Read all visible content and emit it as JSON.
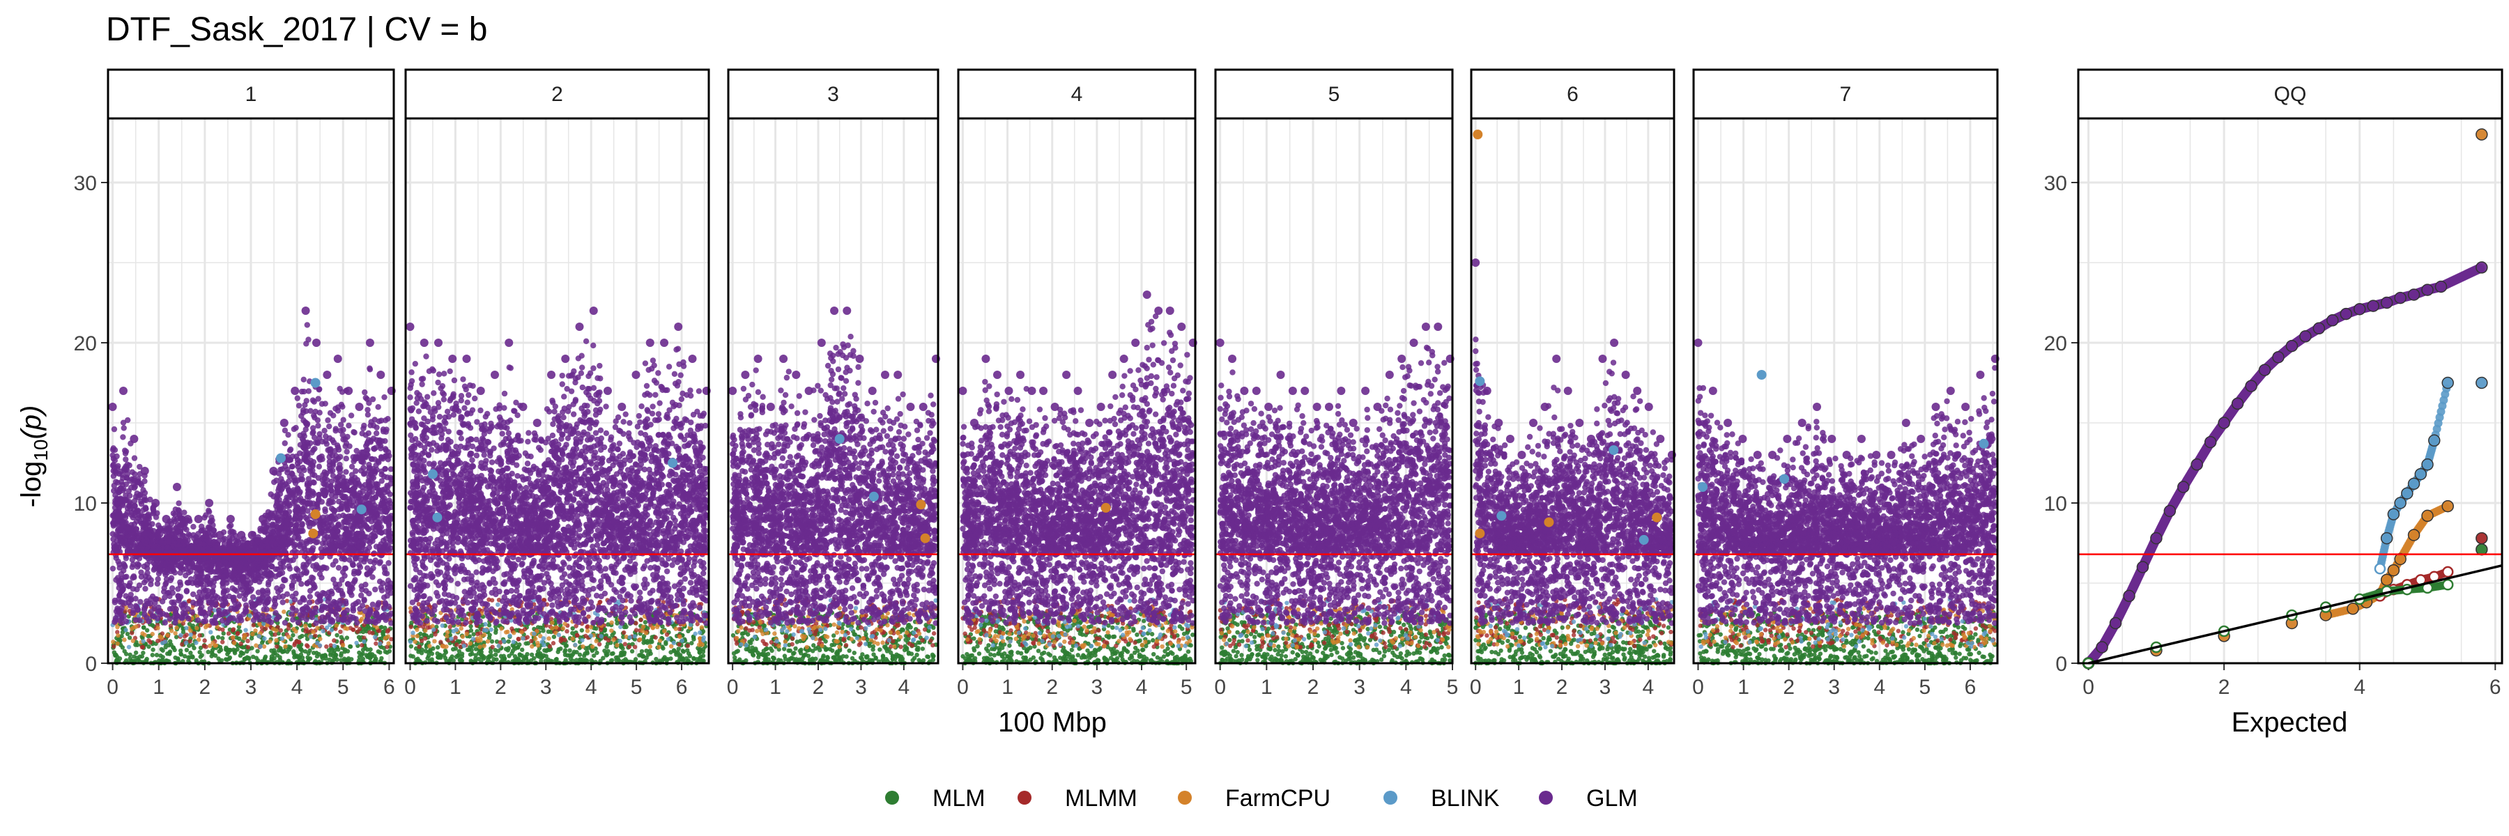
{
  "title": "DTF_Sask_2017 | CV = b",
  "ylabel_main": "-log",
  "ylabel_sub": "10",
  "ylabel_arg": "(p)",
  "xlabel_manhattan": "100 Mbp",
  "xlabel_qq": "Expected",
  "threshold": 6.8,
  "colors": {
    "MLM": "#2e7d32",
    "MLMM": "#a52a2a",
    "FarmCPU": "#d4822a",
    "BLINK": "#5b9ac8",
    "GLM": "#6a2a8e",
    "threshold_line": "#ff0000",
    "grid": "#e6e6e6"
  },
  "legend": [
    "MLM",
    "MLMM",
    "FarmCPU",
    "BLINK",
    "GLM"
  ],
  "chart_data": {
    "type": "scatter",
    "subtype": "manhattan + qq",
    "ylim": [
      0,
      34
    ],
    "yticks": [
      0,
      10,
      20,
      30
    ],
    "panels": [
      {
        "label": "1",
        "xlim": [
          -0.1,
          6.1
        ],
        "xticks": [
          0,
          1,
          2,
          3,
          4,
          5,
          6
        ],
        "glm_peak": [
          16,
          17,
          14,
          12,
          10,
          9,
          11,
          9,
          9,
          10,
          8,
          9,
          8,
          8,
          9,
          12,
          15,
          17,
          22,
          20,
          18,
          19,
          17,
          16,
          20,
          18,
          17
        ],
        "highlights": [
          {
            "series": "BLINK",
            "x": 3.65,
            "y": 12.8
          },
          {
            "series": "BLINK",
            "x": 4.4,
            "y": 17.5
          },
          {
            "series": "FarmCPU",
            "x": 4.4,
            "y": 9.3
          },
          {
            "series": "FarmCPU",
            "x": 4.35,
            "y": 8.1
          },
          {
            "series": "BLINK",
            "x": 5.4,
            "y": 9.6
          }
        ]
      },
      {
        "label": "2",
        "xlim": [
          -0.1,
          6.6
        ],
        "xticks": [
          0,
          1,
          2,
          3,
          4,
          5,
          6
        ],
        "glm_peak": [
          21,
          20,
          20,
          19,
          19,
          17,
          18,
          20,
          16,
          15,
          18,
          19,
          21,
          22,
          17,
          16,
          18,
          20,
          20,
          21,
          19,
          17
        ],
        "highlights": [
          {
            "series": "BLINK",
            "x": 0.5,
            "y": 11.8
          },
          {
            "series": "BLINK",
            "x": 0.6,
            "y": 9.1
          },
          {
            "series": "BLINK",
            "x": 5.8,
            "y": 12.5
          }
        ]
      },
      {
        "label": "3",
        "xlim": [
          -0.1,
          4.8
        ],
        "xticks": [
          0,
          1,
          2,
          3,
          4
        ],
        "glm_peak": [
          17,
          18,
          19,
          16,
          19,
          18,
          17,
          20,
          22,
          22,
          19,
          17,
          18,
          18,
          16,
          16,
          19
        ],
        "highlights": [
          {
            "series": "BLINK",
            "x": 2.5,
            "y": 14.0
          },
          {
            "series": "BLINK",
            "x": 3.3,
            "y": 10.4
          },
          {
            "series": "FarmCPU",
            "x": 4.4,
            "y": 9.9
          },
          {
            "series": "FarmCPU",
            "x": 4.5,
            "y": 7.8
          }
        ]
      },
      {
        "label": "4",
        "xlim": [
          -0.1,
          5.2
        ],
        "xticks": [
          0,
          1,
          2,
          3,
          4,
          5
        ],
        "glm_peak": [
          17,
          15,
          19,
          18,
          17,
          18,
          17,
          17,
          16,
          18,
          17,
          15,
          16,
          18,
          19,
          20,
          23,
          22,
          22,
          21,
          20
        ],
        "highlights": [
          {
            "series": "FarmCPU",
            "x": 3.2,
            "y": 9.7
          }
        ]
      },
      {
        "label": "5",
        "xlim": [
          -0.1,
          5.0
        ],
        "xticks": [
          0,
          1,
          2,
          3,
          4,
          5
        ],
        "glm_peak": [
          20,
          19,
          17,
          17,
          16,
          18,
          17,
          17,
          16,
          16,
          17,
          15,
          17,
          16,
          18,
          19,
          20,
          21,
          21,
          19
        ],
        "highlights": []
      },
      {
        "label": "6",
        "xlim": [
          -0.1,
          4.6
        ],
        "xticks": [
          0,
          1,
          2,
          3,
          4
        ],
        "glm_peak": [
          25,
          17,
          15,
          14,
          13,
          15,
          16,
          19,
          17,
          15,
          14,
          19,
          20,
          18,
          17,
          16,
          14,
          13
        ],
        "highlights": [
          {
            "series": "FarmCPU",
            "x": 0.05,
            "y": 33.0
          },
          {
            "series": "BLINK",
            "x": 0.1,
            "y": 17.6
          },
          {
            "series": "FarmCPU",
            "x": 0.1,
            "y": 8.1
          },
          {
            "series": "BLINK",
            "x": 0.6,
            "y": 9.2
          },
          {
            "series": "FarmCPU",
            "x": 1.7,
            "y": 8.8
          },
          {
            "series": "BLINK",
            "x": 3.2,
            "y": 13.3
          },
          {
            "series": "FarmCPU",
            "x": 4.2,
            "y": 9.1
          },
          {
            "series": "BLINK",
            "x": 3.9,
            "y": 7.7
          }
        ]
      },
      {
        "label": "7",
        "xlim": [
          -0.1,
          6.6
        ],
        "xticks": [
          0,
          1,
          2,
          3,
          4,
          5,
          6
        ],
        "glm_peak": [
          20,
          17,
          15,
          14,
          13,
          13,
          14,
          15,
          16,
          14,
          13,
          14,
          13,
          13,
          15,
          14,
          16,
          17,
          16,
          18,
          19
        ],
        "highlights": [
          {
            "series": "BLINK",
            "x": 0.1,
            "y": 11.0
          },
          {
            "series": "BLINK",
            "x": 1.4,
            "y": 18.0
          },
          {
            "series": "BLINK",
            "x": 1.9,
            "y": 11.5
          },
          {
            "series": "BLINK",
            "x": 6.3,
            "y": 13.7
          }
        ]
      }
    ],
    "qq": {
      "label": "QQ",
      "xlim": [
        -0.15,
        6.1
      ],
      "xticks": [
        0,
        2,
        4,
        6
      ],
      "expected_line": {
        "x": [
          0,
          6.1
        ],
        "y": [
          0,
          6.1
        ]
      },
      "series": [
        {
          "name": "GLM",
          "x": [
            0,
            0.2,
            0.4,
            0.6,
            0.8,
            1.0,
            1.2,
            1.4,
            1.6,
            1.8,
            2.0,
            2.2,
            2.4,
            2.6,
            2.8,
            3.0,
            3.2,
            3.4,
            3.6,
            3.8,
            4.0,
            4.2,
            4.4,
            4.6,
            4.8,
            5.0,
            5.2,
            5.8
          ],
          "y": [
            0,
            1.0,
            2.5,
            4.2,
            6.0,
            7.8,
            9.5,
            11.0,
            12.4,
            13.8,
            15.0,
            16.2,
            17.3,
            18.3,
            19.1,
            19.8,
            20.4,
            20.9,
            21.4,
            21.8,
            22.1,
            22.3,
            22.5,
            22.8,
            23.0,
            23.3,
            23.5,
            24.7
          ]
        },
        {
          "name": "FarmCPU",
          "x": [
            0,
            1,
            2,
            3,
            3.5,
            3.9,
            4.1,
            4.3,
            4.4,
            4.5,
            4.6,
            4.8,
            5.0,
            5.3,
            5.8
          ],
          "y": [
            0,
            0.8,
            1.7,
            2.5,
            3.0,
            3.4,
            3.8,
            4.3,
            5.2,
            5.8,
            6.5,
            8.0,
            9.2,
            9.8,
            33.0
          ]
        },
        {
          "name": "BLINK",
          "x": [
            4.3,
            4.4,
            4.5,
            4.6,
            4.7,
            4.8,
            4.9,
            5.0,
            5.1,
            5.3,
            5.8
          ],
          "y": [
            5.9,
            7.8,
            9.3,
            10.0,
            10.6,
            11.2,
            11.8,
            12.4,
            13.9,
            17.5,
            17.5
          ]
        },
        {
          "name": "MLMM",
          "x": [
            4.3,
            4.5,
            4.7,
            4.9,
            5.1,
            5.3,
            5.8
          ],
          "y": [
            4.2,
            4.6,
            4.9,
            5.2,
            5.4,
            5.7,
            7.8
          ]
        },
        {
          "name": "MLM",
          "x": [
            0,
            1,
            2,
            3,
            3.5,
            4.0,
            4.4,
            4.7,
            5.0,
            5.3,
            5.8
          ],
          "y": [
            0,
            1.0,
            2.0,
            3.0,
            3.5,
            4.0,
            4.5,
            4.6,
            4.7,
            4.9,
            7.1
          ]
        }
      ]
    }
  }
}
